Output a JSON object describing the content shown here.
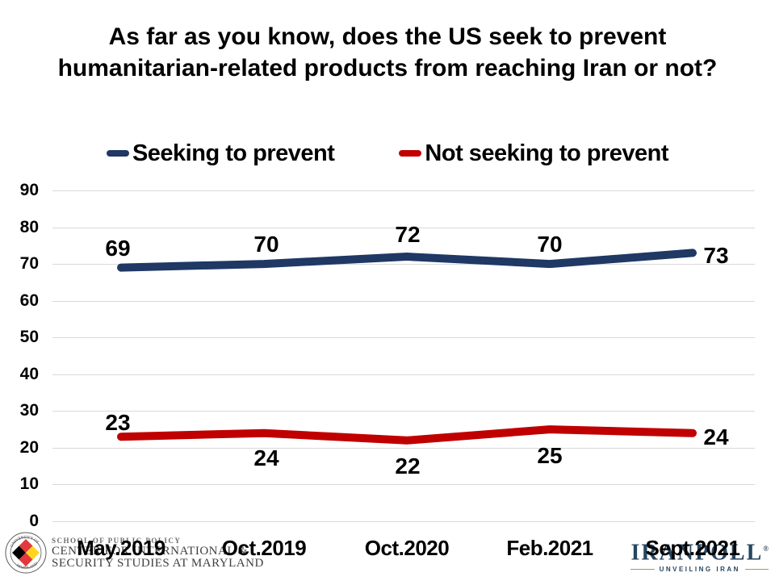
{
  "title": {
    "line1": "As far as you know, does the US seek to prevent",
    "line2": "humanitarian-related products from reaching Iran or not?"
  },
  "legend": {
    "items": [
      {
        "label": "Seeking to prevent",
        "color": "#1f3864"
      },
      {
        "label": "Not seeking to prevent",
        "color": "#c00000"
      }
    ]
  },
  "chart_data": {
    "type": "line",
    "title": "As far as you know, does the US seek to prevent humanitarian-related products from reaching Iran or not?",
    "categories": [
      "May.2019",
      "Oct.2019",
      "Oct.2020",
      "Feb.2021",
      "Sept.2021"
    ],
    "series": [
      {
        "name": "Seeking to prevent",
        "color": "#1f3864",
        "values": [
          69,
          70,
          72,
          70,
          73
        ]
      },
      {
        "name": "Not seeking to prevent",
        "color": "#c00000",
        "values": [
          23,
          24,
          22,
          25,
          24
        ]
      }
    ],
    "xlabel": "",
    "ylabel": "",
    "ylim": [
      0,
      90
    ],
    "yticks": [
      0,
      10,
      20,
      30,
      40,
      50,
      60,
      70,
      80,
      90
    ],
    "grid": true,
    "legend_position": "top",
    "data_labels": true
  },
  "footer": {
    "umd": {
      "line1": "SCHOOL OF PUBLIC POLICY",
      "line2": "CENTER FOR INTERNATIONAL &",
      "line3": "SECURITY STUDIES AT MARYLAND",
      "seal_name": "university-of-maryland-seal"
    },
    "iranpoll": {
      "name": "IRANPOLL",
      "reg": "®",
      "tagline": "UNVEILING IRAN"
    }
  },
  "colors": {
    "series_blue": "#1f3864",
    "series_red": "#c00000",
    "gridline": "#d9d9d9",
    "iranpoll_navy": "#27455e",
    "tagline_gold": "#b29367"
  }
}
